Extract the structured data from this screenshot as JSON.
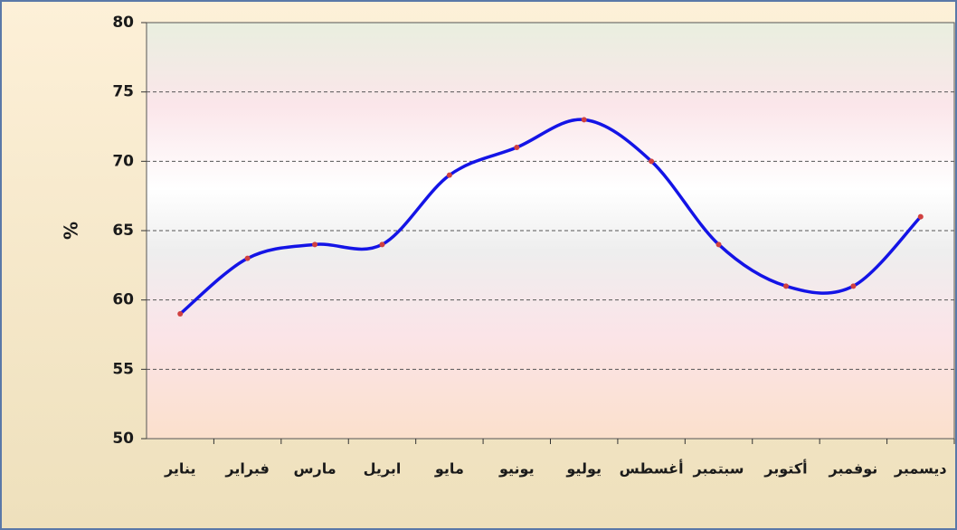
{
  "chart_data": {
    "type": "line",
    "y_label": "%",
    "categories": [
      "يناير",
      "فبراير",
      "مارس",
      "ابريل",
      "مايو",
      "يونيو",
      "يوليو",
      "أغسطس",
      "سبتمبر",
      "أكتوبر",
      "نوفمبر",
      "ديسمبر"
    ],
    "series": [
      {
        "name": "",
        "color": "#1414e6",
        "values": [
          59,
          63,
          64,
          64,
          69,
          71,
          73,
          70,
          64,
          61,
          61,
          66
        ]
      }
    ],
    "marker_color": "#d04040",
    "ylim": [
      50,
      80
    ],
    "yticks": [
      50,
      55,
      60,
      65,
      70,
      75,
      80
    ],
    "grid": true
  }
}
